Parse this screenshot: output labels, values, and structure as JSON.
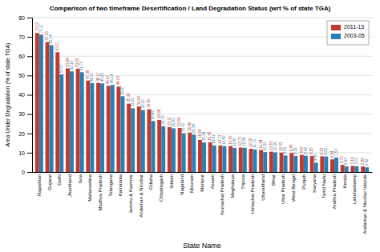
{
  "chart_data": {
    "type": "bar",
    "title": "Comparison of two timeframe Desertification / Land Degradation Status (wrt % of state TGA)",
    "x_label": "State Name",
    "y_label": "Area Under Degradation (% of state TGA)",
    "categories": [
      "Rajasthan",
      "Gujarat",
      "Delhi",
      "Jharkhand",
      "Goa",
      "Maharashtra",
      "Madhya Pradesh",
      "Telangana",
      "Karnataka",
      "Jammu & Kashmir",
      "Andaman & Nicobar",
      "Odisha",
      "Chhattisgarh",
      "Sikkim",
      "Nagaland",
      "Mizoram",
      "Manipur",
      "Assam",
      "Arunachal Pradesh",
      "Meghalaya",
      "Tripura",
      "Himachal Pradesh",
      "Uttarakhand",
      "Bihar",
      "Uttar Pradesh",
      "West Bengal",
      "Punjab",
      "Haryana",
      "Tamil Nadu",
      "Andhra Pradesh",
      "Kerala",
      "Lakshadweep",
      "Andaman & Nicobar Islands"
    ],
    "series": [
      {
        "name": "2011-13",
        "color": "#c0392b",
        "values": [
          72.03,
          67.33,
          62.07,
          53.68,
          53.53,
          47.38,
          46.17,
          44.67,
          44.23,
          35.39,
          33.93,
          32.5,
          26.98,
          23.27,
          22.82,
          20.42,
          16.64,
          15.42,
          13.73,
          13.47,
          12.7,
          12.06,
          11.44,
          10.53,
          10.03,
          9.85,
          8.87,
          8.25,
          8.13,
          6.54,
          3.7,
          3.19,
          2.86
        ],
        "value_labels": [
          "72.03",
          "67.33",
          "62.07",
          "53.68",
          "53.53",
          "47.38",
          "46.17",
          "44.67",
          "44.23",
          "35.39",
          "33.93",
          "32.50",
          "26.98",
          "23.27",
          "22.82",
          "20.42",
          "16.64",
          "15.42",
          "13.73",
          "13.47",
          "12.70",
          "12.06",
          "11.44",
          "10.53",
          "10.03",
          "9.85",
          "8.87",
          "8.25",
          "8.13",
          "6.54",
          "3.70",
          "3.19",
          "2.86"
        ]
      },
      {
        "name": "2003-05",
        "color": "#2980b9",
        "values": [
          71.17,
          65.74,
          50.57,
          52.13,
          51.72,
          46.07,
          45.9,
          45.13,
          39.27,
          33.0,
          32.1,
          26.43,
          23.72,
          22.62,
          20.0,
          19.38,
          15.34,
          13.81,
          13.4,
          12.47,
          12.54,
          11.71,
          10.3,
          10.16,
          8.53,
          8.31,
          8.42,
          4.85,
          8.02,
          7.53,
          2.93,
          3.0,
          2.42
        ],
        "value_labels": [
          "71.17",
          "65.74",
          "50.57",
          "52.13",
          "51.72",
          "46.07",
          "45.90",
          "45.13",
          "39.27",
          "33.00",
          "32.10",
          "26.43",
          "23.72",
          "22.62",
          "20.00",
          "19.38",
          "15.34",
          "13.81",
          "13.40",
          "12.47",
          "12.54",
          "11.71",
          "10.30",
          "10.16",
          "8.53",
          "8.31",
          "8.42",
          "4.85",
          "8.02",
          "7.53",
          "2.93",
          "3.00",
          "2.42"
        ]
      }
    ],
    "ylim": [
      0,
      80
    ],
    "yticks": [
      0,
      10,
      20,
      30,
      40,
      50,
      60,
      70,
      80
    ],
    "grid": true,
    "legend": "upper right",
    "data_labels": true
  }
}
